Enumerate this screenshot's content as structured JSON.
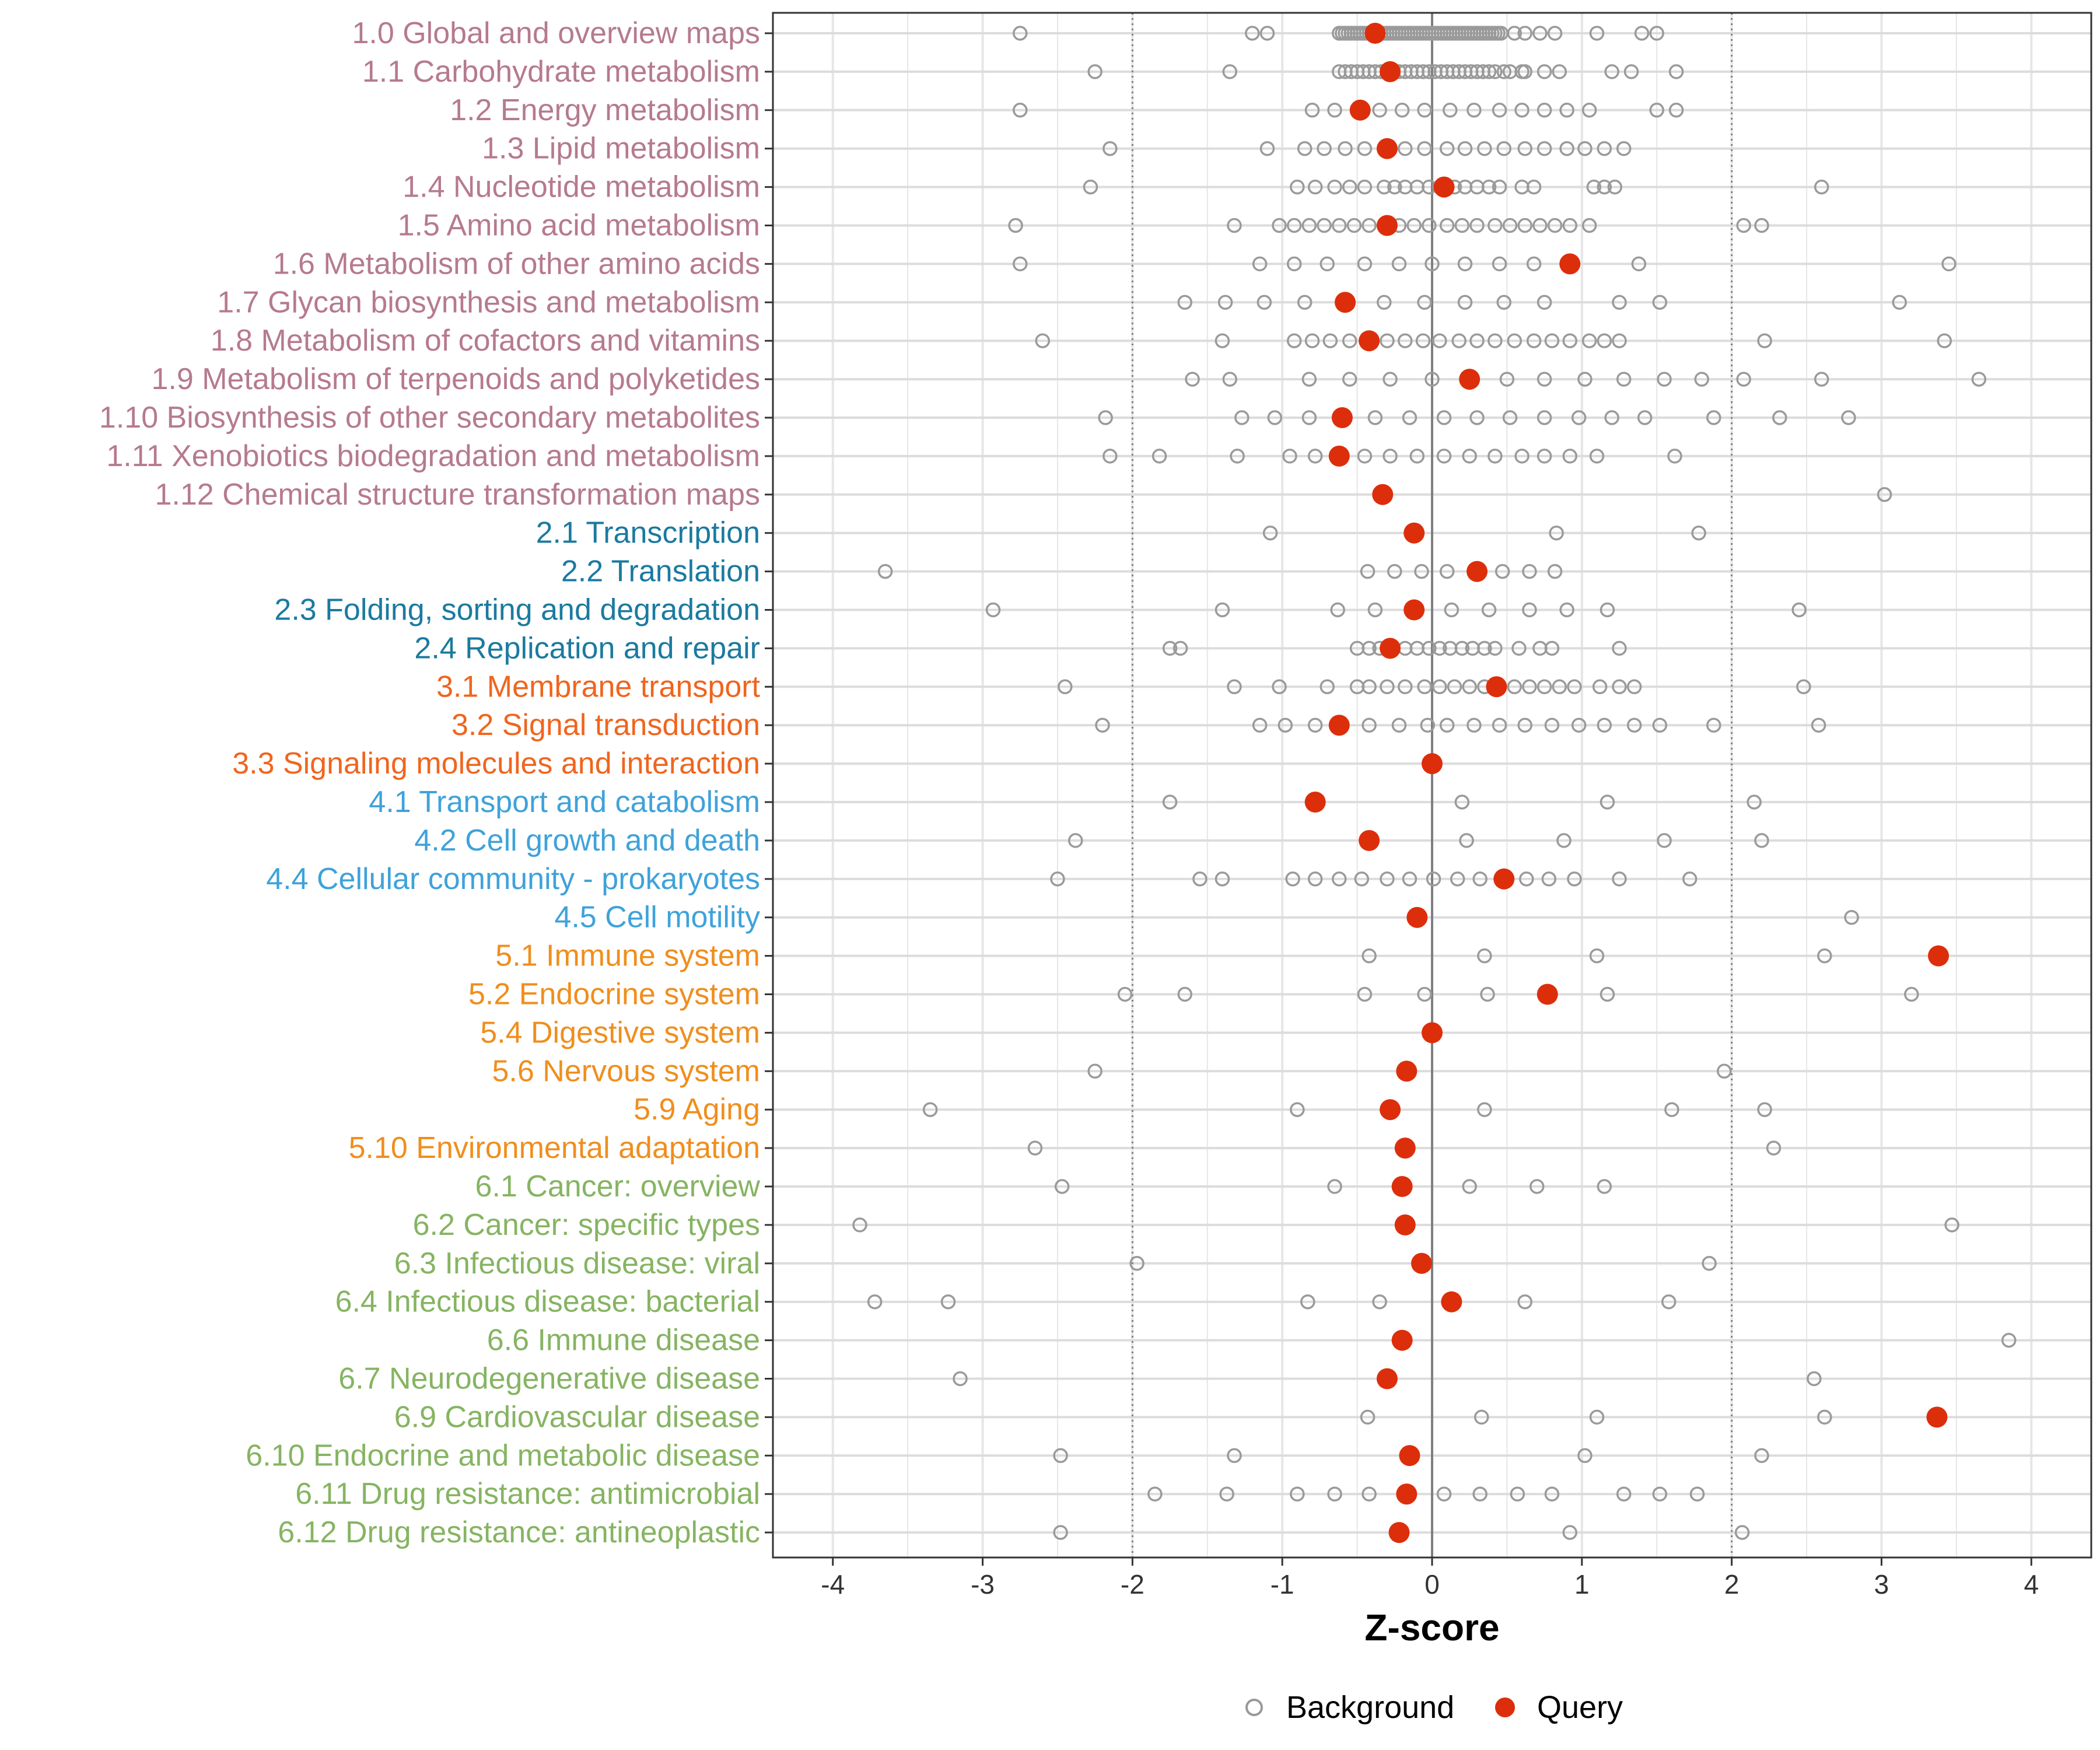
{
  "chart_data": {
    "type": "scatter",
    "xlabel": "Z-score",
    "ylabel": "",
    "xlim": [
      -4.4,
      4.4
    ],
    "x_ticks": [
      -4,
      -3,
      -2,
      -1,
      0,
      1,
      2,
      3,
      4
    ],
    "threshold_lines": [
      -2,
      2
    ],
    "zero_line": 0,
    "legend": {
      "position": "bottom",
      "items": [
        {
          "name": "Background",
          "style": "open-circle",
          "color": "#999999"
        },
        {
          "name": "Query",
          "style": "filled-circle",
          "color": "#DD2E0B"
        }
      ]
    },
    "group_colors": {
      "1": "#B67A8E",
      "2": "#1B7AA0",
      "3": "#F0651E",
      "4": "#3FA2DA",
      "5": "#F08E1D",
      "6": "#86B462"
    },
    "series": [
      {
        "name": "Query",
        "color": "#DD2E0B"
      },
      {
        "name": "Background",
        "color": "#999999"
      }
    ],
    "categories": [
      {
        "label": "1.0 Global and overview maps",
        "group": "1",
        "query": -0.38,
        "background": [
          -2.75,
          -1.2,
          -1.1,
          -0.62,
          -0.6,
          -0.58,
          -0.56,
          -0.54,
          -0.52,
          -0.5,
          -0.48,
          -0.46,
          -0.44,
          -0.42,
          -0.4,
          -0.36,
          -0.34,
          -0.32,
          -0.3,
          -0.28,
          -0.26,
          -0.24,
          -0.22,
          -0.2,
          -0.18,
          -0.16,
          -0.14,
          -0.12,
          -0.1,
          -0.08,
          -0.06,
          -0.04,
          -0.02,
          0,
          0.02,
          0.04,
          0.06,
          0.08,
          0.1,
          0.12,
          0.14,
          0.16,
          0.18,
          0.2,
          0.22,
          0.24,
          0.26,
          0.28,
          0.3,
          0.32,
          0.34,
          0.36,
          0.38,
          0.4,
          0.42,
          0.44,
          0.46,
          0.55,
          0.62,
          0.72,
          0.82,
          1.1,
          1.4,
          1.5
        ]
      },
      {
        "label": "1.1 Carbohydrate metabolism",
        "group": "1",
        "query": -0.28,
        "background": [
          -2.25,
          -1.35,
          -0.62,
          -0.58,
          -0.54,
          -0.5,
          -0.46,
          -0.42,
          -0.38,
          -0.34,
          -0.3,
          -0.26,
          -0.22,
          -0.18,
          -0.14,
          -0.1,
          -0.06,
          -0.02,
          0.02,
          0.06,
          0.1,
          0.14,
          0.18,
          0.22,
          0.26,
          0.3,
          0.34,
          0.38,
          0.42,
          0.48,
          0.52,
          0.6,
          0.62,
          0.75,
          0.85,
          1.2,
          1.33,
          1.63
        ]
      },
      {
        "label": "1.2 Energy metabolism",
        "group": "1",
        "query": -0.48,
        "background": [
          -2.75,
          -0.8,
          -0.65,
          -0.35,
          -0.2,
          -0.05,
          0.12,
          0.28,
          0.45,
          0.6,
          0.75,
          0.9,
          1.05,
          1.5,
          1.63
        ]
      },
      {
        "label": "1.3 Lipid metabolism",
        "group": "1",
        "query": -0.3,
        "background": [
          -2.15,
          -1.1,
          -0.85,
          -0.72,
          -0.58,
          -0.45,
          -0.18,
          -0.05,
          0.1,
          0.22,
          0.35,
          0.48,
          0.62,
          0.75,
          0.9,
          1.02,
          1.15,
          1.28
        ]
      },
      {
        "label": "1.4 Nucleotide metabolism",
        "group": "1",
        "query": 0.08,
        "background": [
          -2.28,
          -0.9,
          -0.78,
          -0.65,
          -0.55,
          -0.45,
          -0.32,
          -0.25,
          -0.18,
          -0.1,
          -0.02,
          0.05,
          0.15,
          0.22,
          0.3,
          0.38,
          0.45,
          0.6,
          0.68,
          1.08,
          1.15,
          1.22,
          2.6
        ]
      },
      {
        "label": "1.5 Amino acid metabolism",
        "group": "1",
        "query": -0.3,
        "background": [
          -2.78,
          -1.32,
          -1.02,
          -0.92,
          -0.82,
          -0.72,
          -0.62,
          -0.52,
          -0.42,
          -0.22,
          -0.12,
          -0.02,
          0.1,
          0.2,
          0.3,
          0.42,
          0.52,
          0.62,
          0.72,
          0.82,
          0.92,
          1.05,
          2.08,
          2.2
        ]
      },
      {
        "label": "1.6 Metabolism of other amino acids",
        "group": "1",
        "query": 0.92,
        "background": [
          -2.75,
          -1.15,
          -0.92,
          -0.7,
          -0.45,
          -0.22,
          0,
          0.22,
          0.45,
          0.68,
          1.38,
          3.45
        ]
      },
      {
        "label": "1.7 Glycan biosynthesis and metabolism",
        "group": "1",
        "query": -0.58,
        "background": [
          -1.65,
          -1.38,
          -1.12,
          -0.85,
          -0.32,
          -0.05,
          0.22,
          0.48,
          0.75,
          1.25,
          1.52,
          3.12
        ]
      },
      {
        "label": "1.8 Metabolism of cofactors and vitamins",
        "group": "1",
        "query": -0.42,
        "background": [
          -2.6,
          -1.4,
          -0.92,
          -0.8,
          -0.68,
          -0.55,
          -0.3,
          -0.18,
          -0.06,
          0.05,
          0.18,
          0.3,
          0.42,
          0.55,
          0.68,
          0.8,
          0.92,
          1.05,
          1.15,
          1.25,
          2.22,
          3.42
        ]
      },
      {
        "label": "1.9 Metabolism of terpenoids and polyketides",
        "group": "1",
        "query": 0.25,
        "background": [
          -1.6,
          -1.35,
          -0.82,
          -0.55,
          -0.28,
          0,
          0.5,
          0.75,
          1.02,
          1.28,
          1.55,
          1.8,
          2.08,
          2.6,
          3.65
        ]
      },
      {
        "label": "1.10 Biosynthesis of other secondary metabolites",
        "group": "1",
        "query": -0.6,
        "background": [
          -2.18,
          -1.27,
          -1.05,
          -0.82,
          -0.38,
          -0.15,
          0.08,
          0.3,
          0.52,
          0.75,
          0.98,
          1.2,
          1.42,
          1.88,
          2.32,
          2.78
        ]
      },
      {
        "label": "1.11 Xenobiotics biodegradation and metabolism",
        "group": "1",
        "query": -0.62,
        "background": [
          -2.15,
          -1.82,
          -1.3,
          -0.95,
          -0.78,
          -0.45,
          -0.28,
          -0.1,
          0.08,
          0.25,
          0.42,
          0.6,
          0.75,
          0.92,
          1.1,
          1.62
        ]
      },
      {
        "label": "1.12 Chemical structure transformation maps",
        "group": "1",
        "query": -0.33,
        "background": [
          3.02
        ]
      },
      {
        "label": "2.1 Transcription",
        "group": "2",
        "query": -0.12,
        "background": [
          -1.08,
          0.83,
          1.78
        ]
      },
      {
        "label": "2.2 Translation",
        "group": "2",
        "query": 0.3,
        "background": [
          -3.65,
          -0.43,
          -0.25,
          -0.07,
          0.1,
          0.47,
          0.65,
          0.82
        ]
      },
      {
        "label": "2.3 Folding, sorting and degradation",
        "group": "2",
        "query": -0.12,
        "background": [
          -2.93,
          -1.4,
          -0.63,
          -0.38,
          0.13,
          0.38,
          0.65,
          0.9,
          1.17,
          2.45
        ]
      },
      {
        "label": "2.4 Replication and repair",
        "group": "2",
        "query": -0.28,
        "background": [
          -1.75,
          -1.68,
          -0.5,
          -0.42,
          -0.35,
          -0.18,
          -0.1,
          -0.02,
          0.05,
          0.12,
          0.2,
          0.27,
          0.35,
          0.42,
          0.58,
          0.72,
          0.8,
          1.25
        ]
      },
      {
        "label": "3.1 Membrane transport",
        "group": "3",
        "query": 0.43,
        "background": [
          -2.45,
          -1.32,
          -1.02,
          -0.7,
          -0.5,
          -0.42,
          -0.3,
          -0.18,
          -0.05,
          0.05,
          0.15,
          0.25,
          0.35,
          0.55,
          0.65,
          0.75,
          0.85,
          0.95,
          1.12,
          1.25,
          1.35,
          2.48
        ]
      },
      {
        "label": "3.2 Signal transduction",
        "group": "3",
        "query": -0.62,
        "background": [
          -2.2,
          -1.15,
          -0.98,
          -0.78,
          -0.42,
          -0.22,
          -0.03,
          0.1,
          0.28,
          0.45,
          0.62,
          0.8,
          0.98,
          1.15,
          1.35,
          1.52,
          1.88,
          2.58
        ]
      },
      {
        "label": "3.3 Signaling molecules and interaction",
        "group": "3",
        "query": 0.0,
        "background": []
      },
      {
        "label": "4.1 Transport and catabolism",
        "group": "4",
        "query": -0.78,
        "background": [
          -1.75,
          0.2,
          1.17,
          2.15
        ]
      },
      {
        "label": "4.2 Cell growth and death",
        "group": "4",
        "query": -0.42,
        "background": [
          -2.38,
          0.23,
          0.88,
          1.55,
          2.2
        ]
      },
      {
        "label": "4.4 Cellular community - prokaryotes",
        "group": "4",
        "query": 0.48,
        "background": [
          -2.5,
          -1.55,
          -1.4,
          -0.93,
          -0.78,
          -0.62,
          -0.47,
          -0.3,
          -0.15,
          0.01,
          0.17,
          0.32,
          0.63,
          0.78,
          0.95,
          1.25,
          1.72
        ]
      },
      {
        "label": "4.5 Cell motility",
        "group": "4",
        "query": -0.1,
        "background": [
          2.8
        ]
      },
      {
        "label": "5.1 Immune system",
        "group": "5",
        "query": 3.38,
        "background": [
          -0.42,
          0.35,
          1.1,
          2.62
        ]
      },
      {
        "label": "5.2 Endocrine system",
        "group": "5",
        "query": 0.77,
        "background": [
          -2.05,
          -1.65,
          -0.45,
          -0.05,
          0.37,
          1.17,
          3.2
        ]
      },
      {
        "label": "5.4 Digestive system",
        "group": "5",
        "query": 0.0,
        "background": []
      },
      {
        "label": "5.6 Nervous system",
        "group": "5",
        "query": -0.17,
        "background": [
          -2.25,
          1.95
        ]
      },
      {
        "label": "5.9 Aging",
        "group": "5",
        "query": -0.28,
        "background": [
          -3.35,
          -0.9,
          0.35,
          1.6,
          2.22
        ]
      },
      {
        "label": "5.10 Environmental adaptation",
        "group": "5",
        "query": -0.18,
        "background": [
          -2.65,
          2.28
        ]
      },
      {
        "label": "6.1 Cancer: overview",
        "group": "6",
        "query": -0.2,
        "background": [
          -2.47,
          -0.65,
          0.25,
          0.7,
          1.15
        ]
      },
      {
        "label": "6.2 Cancer: specific types",
        "group": "6",
        "query": -0.18,
        "background": [
          -3.82,
          3.47
        ]
      },
      {
        "label": "6.3 Infectious disease: viral",
        "group": "6",
        "query": -0.07,
        "background": [
          -1.97,
          1.85
        ]
      },
      {
        "label": "6.4 Infectious disease: bacterial",
        "group": "6",
        "query": 0.13,
        "background": [
          -3.72,
          -3.23,
          -0.83,
          -0.35,
          0.62,
          1.58
        ]
      },
      {
        "label": "6.6 Immune disease",
        "group": "6",
        "query": -0.2,
        "background": [
          3.85
        ]
      },
      {
        "label": "6.7 Neurodegenerative disease",
        "group": "6",
        "query": -0.3,
        "background": [
          -3.15,
          2.55
        ]
      },
      {
        "label": "6.9 Cardiovascular disease",
        "group": "6",
        "query": 3.37,
        "background": [
          -0.43,
          0.33,
          1.1,
          2.62
        ]
      },
      {
        "label": "6.10 Endocrine and metabolic disease",
        "group": "6",
        "query": -0.15,
        "background": [
          -2.48,
          -1.32,
          1.02,
          2.2
        ]
      },
      {
        "label": "6.11 Drug resistance: antimicrobial",
        "group": "6",
        "query": -0.17,
        "background": [
          -1.85,
          -1.37,
          -0.9,
          -0.65,
          -0.42,
          0.08,
          0.32,
          0.57,
          0.8,
          1.28,
          1.52,
          1.77
        ]
      },
      {
        "label": "6.12 Drug resistance: antineoplastic",
        "group": "6",
        "query": -0.22,
        "background": [
          -2.48,
          0.92,
          2.07
        ]
      }
    ]
  }
}
